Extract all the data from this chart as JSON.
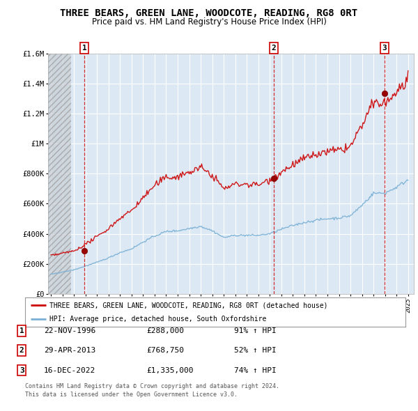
{
  "title": "THREE BEARS, GREEN LANE, WOODCOTE, READING, RG8 0RT",
  "subtitle": "Price paid vs. HM Land Registry's House Price Index (HPI)",
  "title_fontsize": 10,
  "subtitle_fontsize": 8.5,
  "background_color": "#ffffff",
  "plot_bg_color": "#dce9f5",
  "hatch_left_color": "#c8c8c8",
  "grid_color": "#ffffff",
  "ylim": [
    0,
    1600000
  ],
  "xlim_start": 1993.75,
  "xlim_end": 2025.5,
  "hatch_end": 1995.75,
  "yticks": [
    0,
    200000,
    400000,
    600000,
    800000,
    1000000,
    1200000,
    1400000,
    1600000
  ],
  "ytick_labels": [
    "£0",
    "£200K",
    "£400K",
    "£600K",
    "£800K",
    "£1M",
    "£1.2M",
    "£1.4M",
    "£1.6M"
  ],
  "xticks": [
    1994,
    1995,
    1996,
    1997,
    1998,
    1999,
    2000,
    2001,
    2002,
    2003,
    2004,
    2005,
    2006,
    2007,
    2008,
    2009,
    2010,
    2011,
    2012,
    2013,
    2014,
    2015,
    2016,
    2017,
    2018,
    2019,
    2020,
    2021,
    2022,
    2023,
    2024,
    2025
  ],
  "red_line_color": "#cc0000",
  "blue_line_color": "#7ab0d4",
  "sale_marker_color": "#990000",
  "sale_vline_color": "#cc0000",
  "sale_box_color": "#cc0000",
  "sales": [
    {
      "num": 1,
      "year": 1996.9,
      "price": 288000,
      "label": "22-NOV-1996",
      "price_str": "£288,000",
      "hpi_str": "91% ↑ HPI"
    },
    {
      "num": 2,
      "year": 2013.33,
      "price": 768750,
      "label": "29-APR-2013",
      "price_str": "£768,750",
      "hpi_str": "52% ↑ HPI"
    },
    {
      "num": 3,
      "year": 2022.96,
      "price": 1335000,
      "label": "16-DEC-2022",
      "price_str": "£1,335,000",
      "hpi_str": "74% ↑ HPI"
    }
  ],
  "legend_entries": [
    "THREE BEARS, GREEN LANE, WOODCOTE, READING, RG8 0RT (detached house)",
    "HPI: Average price, detached house, South Oxfordshire"
  ],
  "footer_lines": [
    "Contains HM Land Registry data © Crown copyright and database right 2024.",
    "This data is licensed under the Open Government Licence v3.0."
  ]
}
